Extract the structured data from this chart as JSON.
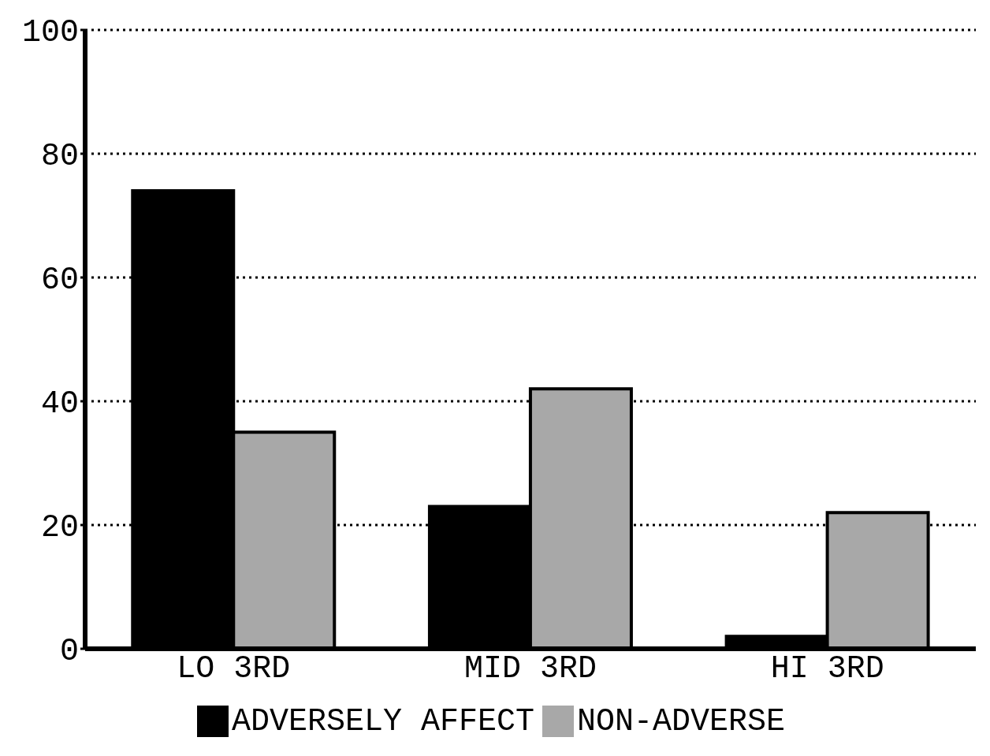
{
  "chart_data": {
    "type": "bar",
    "categories": [
      "LO 3RD",
      "MID 3RD",
      "HI 3RD"
    ],
    "series": [
      {
        "name": "ADVERSELY AFFECT",
        "color": "#000000",
        "values": [
          74,
          23,
          2
        ]
      },
      {
        "name": "NON-ADVERSE",
        "color": "#a8a8a8",
        "values": [
          35,
          42,
          22
        ]
      }
    ],
    "ylim": [
      0,
      100
    ],
    "yticks": [
      0,
      20,
      40,
      60,
      80,
      100
    ],
    "grid": "y",
    "legend": "bottom"
  }
}
